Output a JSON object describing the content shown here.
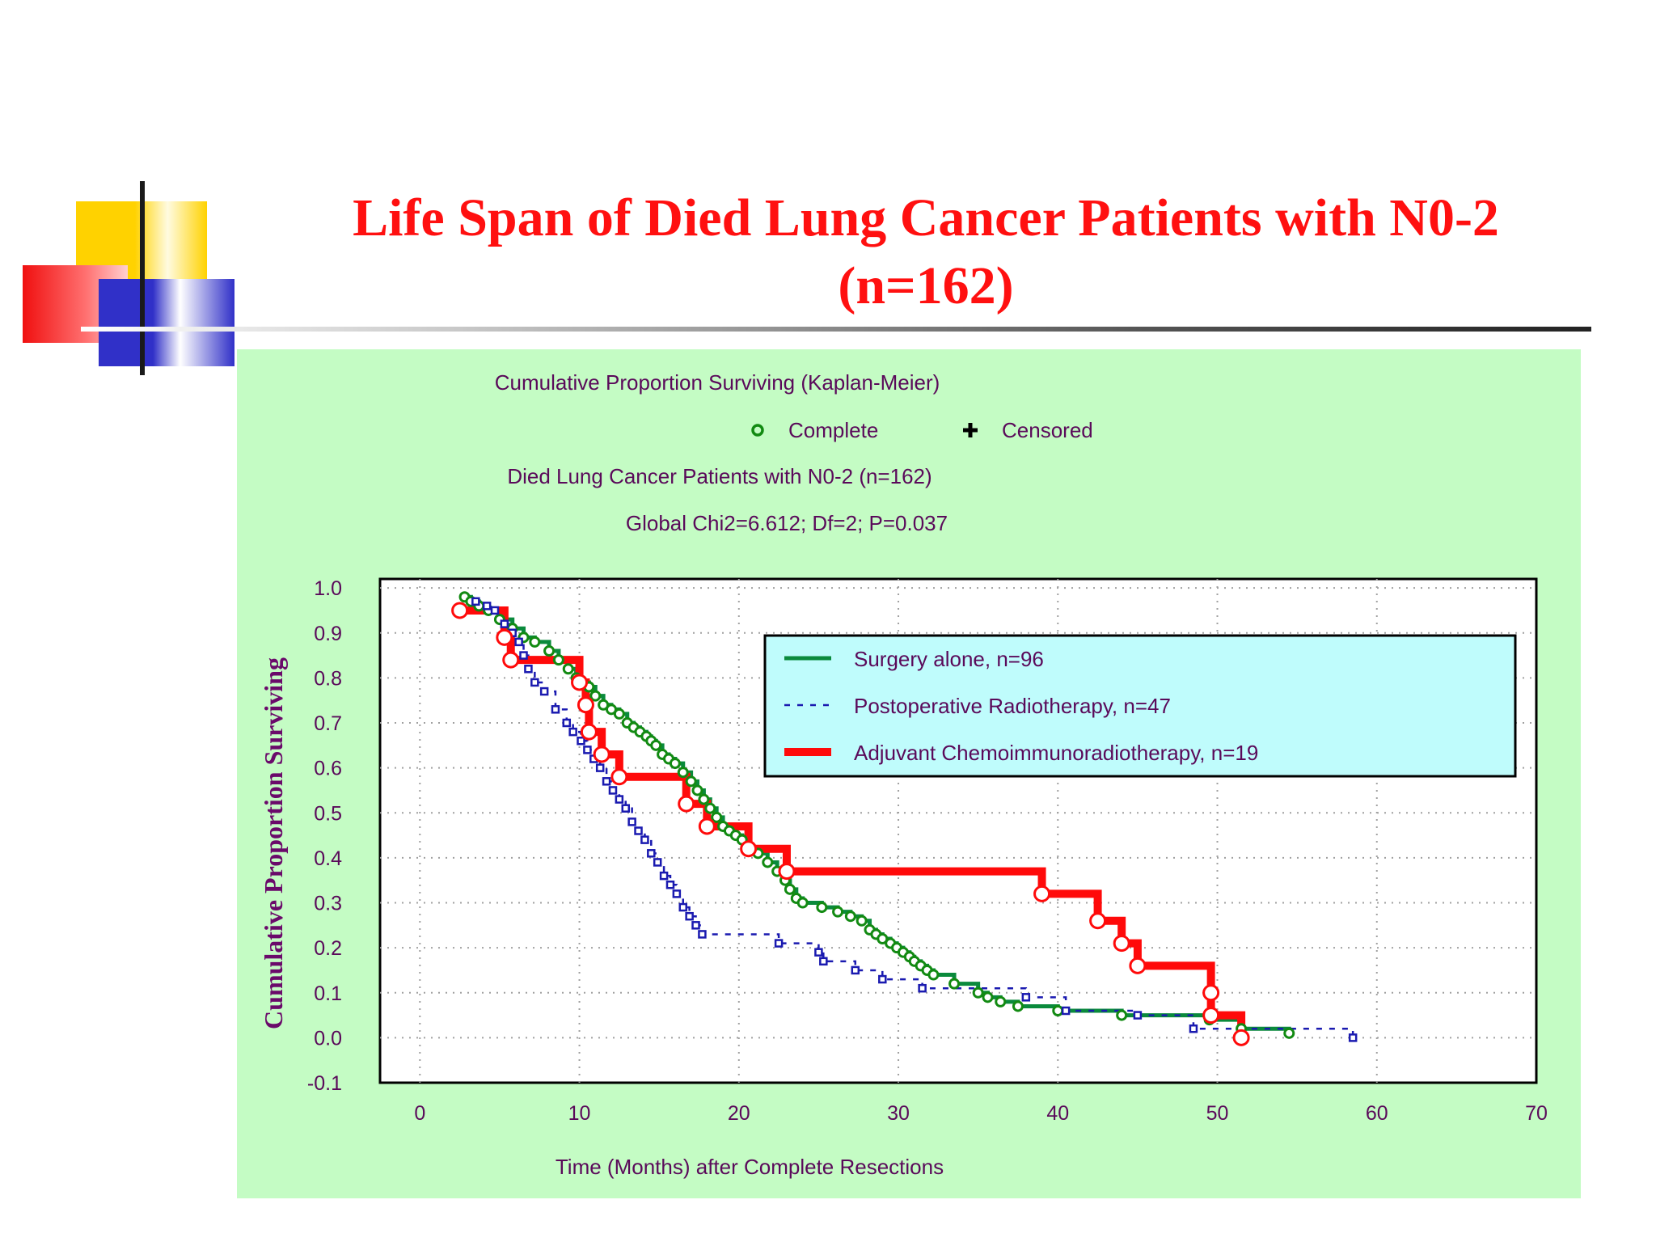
{
  "slide": {
    "title_line1": "Life Span of Died Lung Cancer Patients with N0-2",
    "title_line2": "(n=162)"
  },
  "chart_data": {
    "type": "line",
    "title": "Cumulative Proportion Surviving (Kaplan-Meier)",
    "subtitle": "Died Lung Cancer Patients with N0-2 (n=162)",
    "annotation": "Global Chi2=6.612; Df=2; P=0.037",
    "marker_legend": [
      {
        "symbol": "circle",
        "label": "Complete"
      },
      {
        "symbol": "plus",
        "label": "Censored"
      }
    ],
    "xlabel": "Time (Months) after Complete Resections",
    "ylabel": "Cumulative Proportion Surviving",
    "xlim": [
      -2.5,
      70
    ],
    "ylim": [
      -0.1,
      1.02
    ],
    "xticks": [
      "0",
      "10",
      "20",
      "30",
      "40",
      "50",
      "60",
      "70"
    ],
    "yticks": [
      "1.0",
      "0.9",
      "0.8",
      "0.7",
      "0.6",
      "0.5",
      "0.4",
      "0.3",
      "0.2",
      "0.1",
      "0.0",
      "-0.1"
    ],
    "grid": true,
    "legend_position": "upper-right",
    "plot_background": "#ffffff",
    "panel_background": "#c4fcc4",
    "legend_background": "#bffcfc",
    "series": [
      {
        "name": "Surgery alone, n=96",
        "color": "#0a8a3c",
        "marker_color": "#128a12",
        "style": "solid",
        "points": [
          [
            2.8,
            0.98
          ],
          [
            3.2,
            0.97
          ],
          [
            3.7,
            0.96
          ],
          [
            4.3,
            0.95
          ],
          [
            5.0,
            0.93
          ],
          [
            5.8,
            0.91
          ],
          [
            6.5,
            0.89
          ],
          [
            7.2,
            0.88
          ],
          [
            8.1,
            0.86
          ],
          [
            8.7,
            0.84
          ],
          [
            9.3,
            0.82
          ],
          [
            9.8,
            0.8
          ],
          [
            10.2,
            0.79
          ],
          [
            10.6,
            0.78
          ],
          [
            11.0,
            0.76
          ],
          [
            11.5,
            0.74
          ],
          [
            12.0,
            0.73
          ],
          [
            12.5,
            0.72
          ],
          [
            13.0,
            0.7
          ],
          [
            13.4,
            0.69
          ],
          [
            13.8,
            0.68
          ],
          [
            14.2,
            0.67
          ],
          [
            14.5,
            0.66
          ],
          [
            14.8,
            0.65
          ],
          [
            15.2,
            0.63
          ],
          [
            15.6,
            0.62
          ],
          [
            16.0,
            0.61
          ],
          [
            16.5,
            0.59
          ],
          [
            17.0,
            0.57
          ],
          [
            17.4,
            0.55
          ],
          [
            17.8,
            0.53
          ],
          [
            18.2,
            0.51
          ],
          [
            18.6,
            0.49
          ],
          [
            19.0,
            0.47
          ],
          [
            19.4,
            0.46
          ],
          [
            19.8,
            0.45
          ],
          [
            20.2,
            0.44
          ],
          [
            20.7,
            0.42
          ],
          [
            21.2,
            0.41
          ],
          [
            21.8,
            0.39
          ],
          [
            22.4,
            0.37
          ],
          [
            22.9,
            0.35
          ],
          [
            23.2,
            0.33
          ],
          [
            23.6,
            0.31
          ],
          [
            24.0,
            0.3
          ],
          [
            25.2,
            0.29
          ],
          [
            26.2,
            0.28
          ],
          [
            27.0,
            0.27
          ],
          [
            27.7,
            0.26
          ],
          [
            28.2,
            0.24
          ],
          [
            28.6,
            0.23
          ],
          [
            29.0,
            0.22
          ],
          [
            29.5,
            0.21
          ],
          [
            29.9,
            0.2
          ],
          [
            30.3,
            0.19
          ],
          [
            30.7,
            0.18
          ],
          [
            31.0,
            0.17
          ],
          [
            31.4,
            0.16
          ],
          [
            31.8,
            0.15
          ],
          [
            32.2,
            0.14
          ],
          [
            33.5,
            0.12
          ],
          [
            35.0,
            0.1
          ],
          [
            35.6,
            0.09
          ],
          [
            36.4,
            0.08
          ],
          [
            37.5,
            0.07
          ],
          [
            40.0,
            0.06
          ],
          [
            44.0,
            0.05
          ],
          [
            49.5,
            0.04
          ],
          [
            51.5,
            0.02
          ],
          [
            54.5,
            0.01
          ]
        ]
      },
      {
        "name": "Postoperative Radiotherapy, n=47",
        "color": "#1a1ab0",
        "marker_color": "#1a1ab0",
        "style": "dashed",
        "points": [
          [
            3.5,
            0.97
          ],
          [
            4.2,
            0.96
          ],
          [
            4.7,
            0.95
          ],
          [
            5.3,
            0.92
          ],
          [
            5.8,
            0.9
          ],
          [
            6.2,
            0.88
          ],
          [
            6.5,
            0.85
          ],
          [
            6.8,
            0.82
          ],
          [
            7.2,
            0.79
          ],
          [
            7.8,
            0.77
          ],
          [
            8.5,
            0.73
          ],
          [
            9.2,
            0.7
          ],
          [
            9.6,
            0.68
          ],
          [
            10.1,
            0.66
          ],
          [
            10.5,
            0.64
          ],
          [
            10.9,
            0.62
          ],
          [
            11.3,
            0.6
          ],
          [
            11.7,
            0.57
          ],
          [
            12.1,
            0.55
          ],
          [
            12.5,
            0.53
          ],
          [
            12.9,
            0.51
          ],
          [
            13.3,
            0.48
          ],
          [
            13.7,
            0.46
          ],
          [
            14.1,
            0.44
          ],
          [
            14.5,
            0.41
          ],
          [
            14.9,
            0.39
          ],
          [
            15.3,
            0.36
          ],
          [
            15.7,
            0.34
          ],
          [
            16.1,
            0.32
          ],
          [
            16.5,
            0.29
          ],
          [
            16.9,
            0.27
          ],
          [
            17.3,
            0.25
          ],
          [
            17.7,
            0.23
          ],
          [
            22.5,
            0.21
          ],
          [
            25.0,
            0.19
          ],
          [
            25.3,
            0.17
          ],
          [
            27.3,
            0.15
          ],
          [
            29.0,
            0.13
          ],
          [
            31.5,
            0.11
          ],
          [
            38.0,
            0.09
          ],
          [
            40.5,
            0.06
          ],
          [
            45.0,
            0.05
          ],
          [
            48.5,
            0.02
          ],
          [
            58.5,
            0.0
          ]
        ]
      },
      {
        "name": "Adjuvant Chemoimmunoradiotherapy, n=19",
        "color": "#ff0a0a",
        "marker_color": "#ff0a0a",
        "style": "solid",
        "points": [
          [
            2.5,
            0.95
          ],
          [
            5.3,
            0.89
          ],
          [
            5.7,
            0.84
          ],
          [
            10.0,
            0.79
          ],
          [
            10.4,
            0.74
          ],
          [
            10.6,
            0.68
          ],
          [
            11.4,
            0.63
          ],
          [
            12.5,
            0.58
          ],
          [
            16.7,
            0.52
          ],
          [
            18.0,
            0.47
          ],
          [
            20.6,
            0.42
          ],
          [
            23.0,
            0.37
          ],
          [
            39.0,
            0.32
          ],
          [
            42.5,
            0.26
          ],
          [
            44.0,
            0.21
          ],
          [
            45.0,
            0.16
          ],
          [
            49.6,
            0.1
          ],
          [
            49.6,
            0.05
          ],
          [
            51.5,
            0.0
          ]
        ]
      }
    ]
  }
}
